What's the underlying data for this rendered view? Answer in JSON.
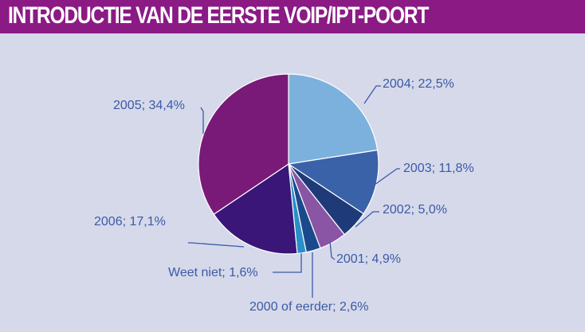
{
  "title": "INTRODUCTIE VAN DE EERSTE VOIP/IPT-POORT",
  "colors": {
    "title_bar": "#8b1a85",
    "background": "#d5d9ea",
    "label_text": "#3c5aa6"
  },
  "chart_data": {
    "type": "pie",
    "title": "INTRODUCTIE VAN DE EERSTE VOIP/IPT-POORT",
    "slices": [
      {
        "name": "2004",
        "label": "2004; 22,5%",
        "value": 22.5,
        "color": "#7cb1de"
      },
      {
        "name": "2003",
        "label": "2003; 11,8%",
        "value": 11.8,
        "color": "#3a62a8"
      },
      {
        "name": "2002",
        "label": "2002; 5,0%",
        "value": 5.0,
        "color": "#1e3a78"
      },
      {
        "name": "2001",
        "label": "2001; 4,9%",
        "value": 4.9,
        "color": "#8a55a5"
      },
      {
        "name": "2000 of eerder",
        "label": "2000 of eerder; 2,6%",
        "value": 2.6,
        "color": "#1b4a8c"
      },
      {
        "name": "Weet niet",
        "label": "Weet niet; 1,6%",
        "value": 1.6,
        "color": "#2a8fc8"
      },
      {
        "name": "2006",
        "label": "2006; 17,1%",
        "value": 17.1,
        "color": "#3a1678"
      },
      {
        "name": "2005",
        "label": "2005; 34,4%",
        "value": 34.4,
        "color": "#7a1a78"
      }
    ],
    "start_angle_deg": 0,
    "direction": "clockwise"
  }
}
